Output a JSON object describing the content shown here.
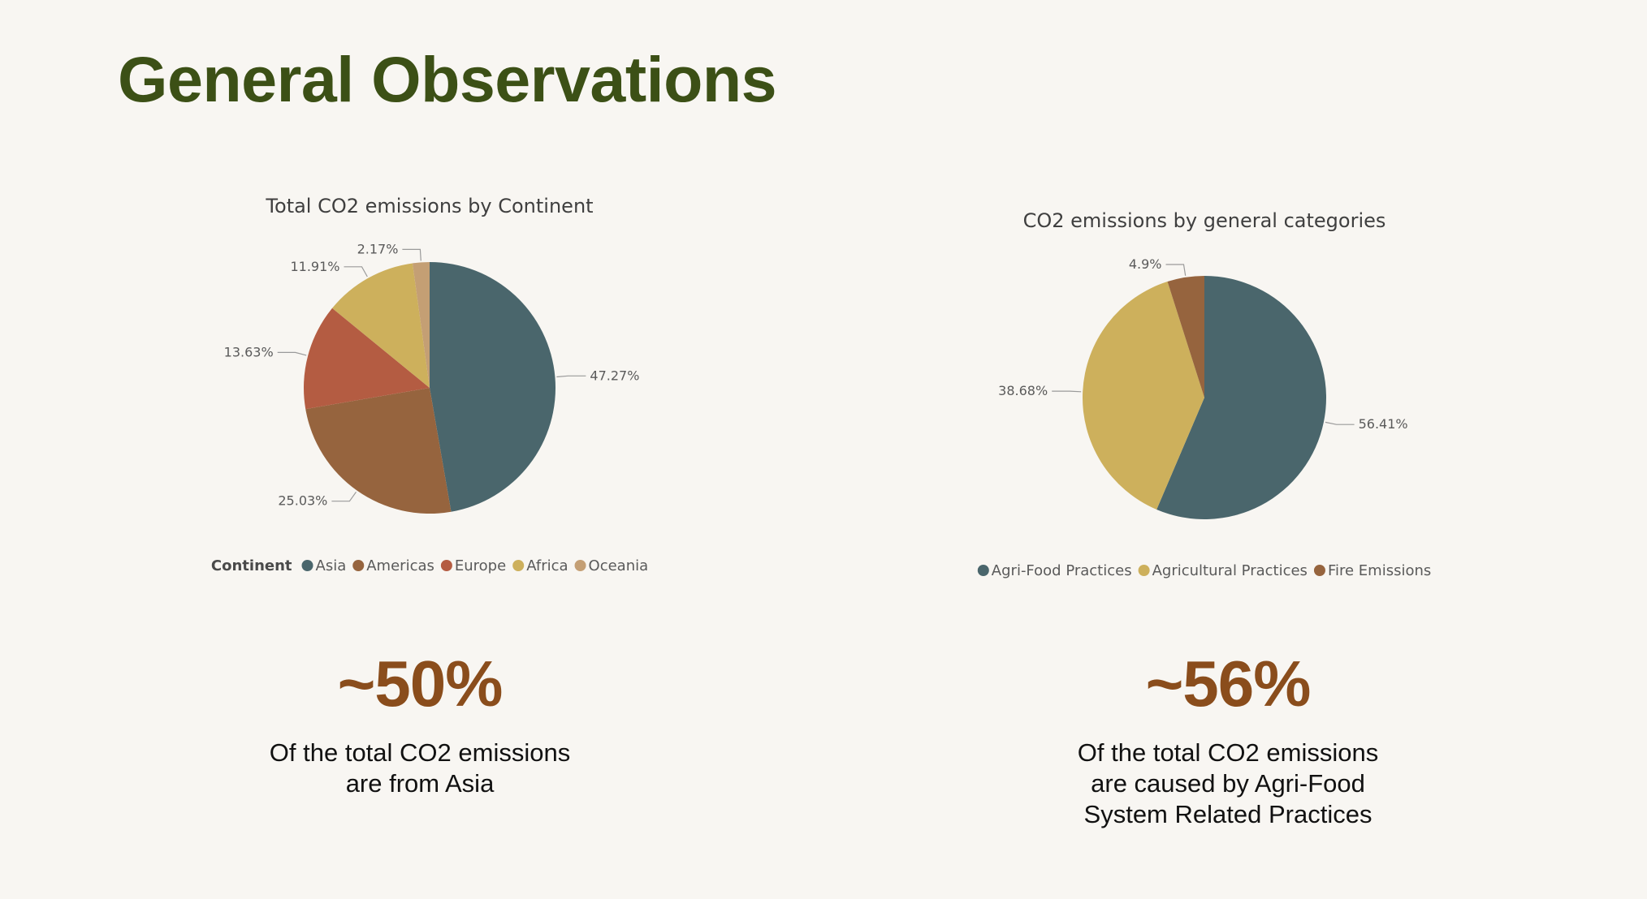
{
  "page": {
    "title": "General Observations"
  },
  "chart_data": [
    {
      "type": "pie",
      "title": "Total CO2 emissions by Continent",
      "legend_title": "Continent",
      "legend_position": "bottom",
      "categories": [
        "Asia",
        "Americas",
        "Europe",
        "Africa",
        "Oceania"
      ],
      "values": [
        47.27,
        25.03,
        13.63,
        11.91,
        2.17
      ],
      "labels": [
        "47.27%",
        "25.03%",
        "13.63%",
        "11.91%",
        "2.17%"
      ],
      "colors": [
        "#4a666c",
        "#96643e",
        "#b45c42",
        "#cdb05c",
        "#c49f74"
      ]
    },
    {
      "type": "pie",
      "title": "CO2 emissions by general categories",
      "legend_title": "",
      "legend_position": "bottom",
      "categories": [
        "Agri-Food Practices",
        "Agricultural Practices",
        "Fire Emissions"
      ],
      "values": [
        56.41,
        38.68,
        4.9
      ],
      "labels": [
        "56.41%",
        "38.68%",
        "4.9%"
      ],
      "colors": [
        "#4a666c",
        "#cdb05c",
        "#96643e"
      ]
    }
  ],
  "stats": [
    {
      "value": "~50%",
      "description": "Of the total CO2 emissions\nare from Asia"
    },
    {
      "value": "~56%",
      "description": "Of the total CO2 emissions\nare caused by Agri-Food\nSystem Related Practices"
    }
  ]
}
